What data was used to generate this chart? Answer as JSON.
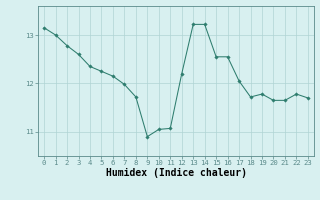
{
  "x": [
    0,
    1,
    2,
    3,
    4,
    5,
    6,
    7,
    8,
    9,
    10,
    11,
    12,
    13,
    14,
    15,
    16,
    17,
    18,
    19,
    20,
    21,
    22,
    23
  ],
  "y": [
    13.15,
    13.0,
    12.78,
    12.6,
    12.35,
    12.25,
    12.15,
    11.98,
    11.72,
    10.9,
    11.05,
    11.07,
    12.2,
    13.22,
    13.22,
    12.55,
    12.55,
    12.05,
    11.72,
    11.78,
    11.65,
    11.65,
    11.78,
    11.7
  ],
  "line_color": "#2e7d6e",
  "marker": "D",
  "marker_size": 1.8,
  "bg_color": "#d8f0f0",
  "grid_color": "#b0d4d4",
  "xlabel": "Humidex (Indice chaleur)",
  "ylim": [
    10.5,
    13.6
  ],
  "xlim": [
    -0.5,
    23.5
  ],
  "yticks": [
    11,
    12,
    13
  ],
  "xticks": [
    0,
    1,
    2,
    3,
    4,
    5,
    6,
    7,
    8,
    9,
    10,
    11,
    12,
    13,
    14,
    15,
    16,
    17,
    18,
    19,
    20,
    21,
    22,
    23
  ],
  "tick_fontsize": 5.2,
  "xlabel_fontsize": 7.0,
  "spine_color": "#5a8a8a",
  "line_width": 0.75
}
